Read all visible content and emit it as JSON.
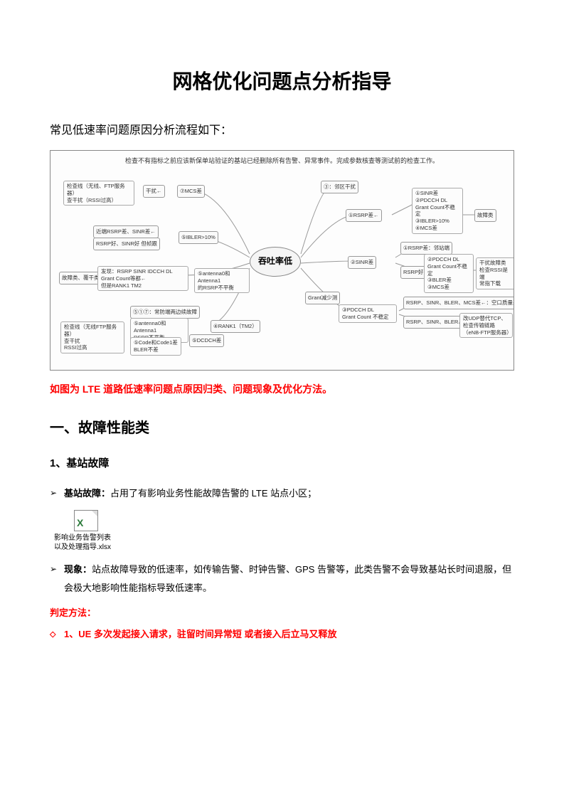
{
  "title": "网格优化问题点分析指导",
  "subtitle": "常见低速率问题原因分析流程如下：",
  "diagram": {
    "top_text": "检查不有指标之前应该新保单站验证的基站已经删除所有告警、异常事件。完成参数核查等测试前的检查工作。",
    "center": "吞吐率低",
    "left_nodes": {
      "n1": "检查线（无线、FTP服务器）\n查干扰（RSSI过高）",
      "n1_label": "干扰←",
      "n1_branch": "⑦MCS差",
      "n2_a": "近端RSRP差、SINR差←",
      "n2_b": "RSRP好、SINR好 但帧跟",
      "n2_branch": "⑤IBLER>10%",
      "n3_box": "故障类、覆干类",
      "n3_label": "发现：RSRP SINR IDCCH DL Grant Count等都←\n但是RANK1 TM2",
      "n3_branch": "⑤antenna0和Antenna1\n的RSRP不平衡",
      "n4_box": "检查线（无线FTP服务器）\n查干扰\nRSSI过高",
      "n4_a": "⑤①⑦：常防端两边续故障",
      "n4_b": "⑤antenna0和Antenna1\nRSRP不平衡",
      "n4_c": "⑤Code和Code1差\nBLER不差",
      "n4_label_b": "⑤DCDCH差",
      "n4_main": "④RANK1（TM2）"
    },
    "right_nodes": {
      "r1": "③：邻区干扰",
      "r1_group": "①SINR差\n②PDCCH DL\nGrant Count不稳定\n③IBLER>10%\n④MCS差",
      "r1_label": "①RSRP差←",
      "r1_end": "故障类",
      "r2": "②SINR差",
      "r2_a": "①RSRP差：邻站端",
      "r2_b": "RSRP好",
      "r2_group": "②PDCCH DL\nGrant Count不稳定\n③BLER差\n③MCS差",
      "r2_end": "干扰故障类\n检查RSSI是端\n常指下载",
      "r3": "③PDCCH DL\nGrant Count 不稳定",
      "r3_label": "Grant减少测",
      "r3_a": "RSRP、SINR、BLER、MCS差←：空口质量差、故障点",
      "r3_b": "RSRP、SINR、BLER、MCS好←",
      "r3_end": "改UDP替代TCP、\n检查传输链路（eNB-FTP服务器）"
    }
  },
  "red_caption": "如图为 LTE 道路低速率问题点原因归类、问题现象及优化方法。",
  "section1": {
    "heading": "一、故障性能类",
    "sub1": {
      "heading": "1、基站故障",
      "bullet1_label": "基站故障：",
      "bullet1_text": "占用了有影响业务性能故障告警的 LTE 站点小区；",
      "file_label": "影响业务告警列表\n以及处理指导.xlsx",
      "bullet2_label": "现象：",
      "bullet2_text": "站点故障导致的低速率，如传输告警、时钟告警、GPS 告警等，此类告警不会导致基站长时间退服，但会极大地影响性能指标导致低速率。",
      "method_label": "判定方法：",
      "method1": "1、UE 多次发起接入请求，驻留时间异常短 或者接入后立马又释放"
    }
  },
  "colors": {
    "red": "#ff0000",
    "black": "#000000",
    "border": "#888888",
    "node_bg": "#fafafa"
  }
}
